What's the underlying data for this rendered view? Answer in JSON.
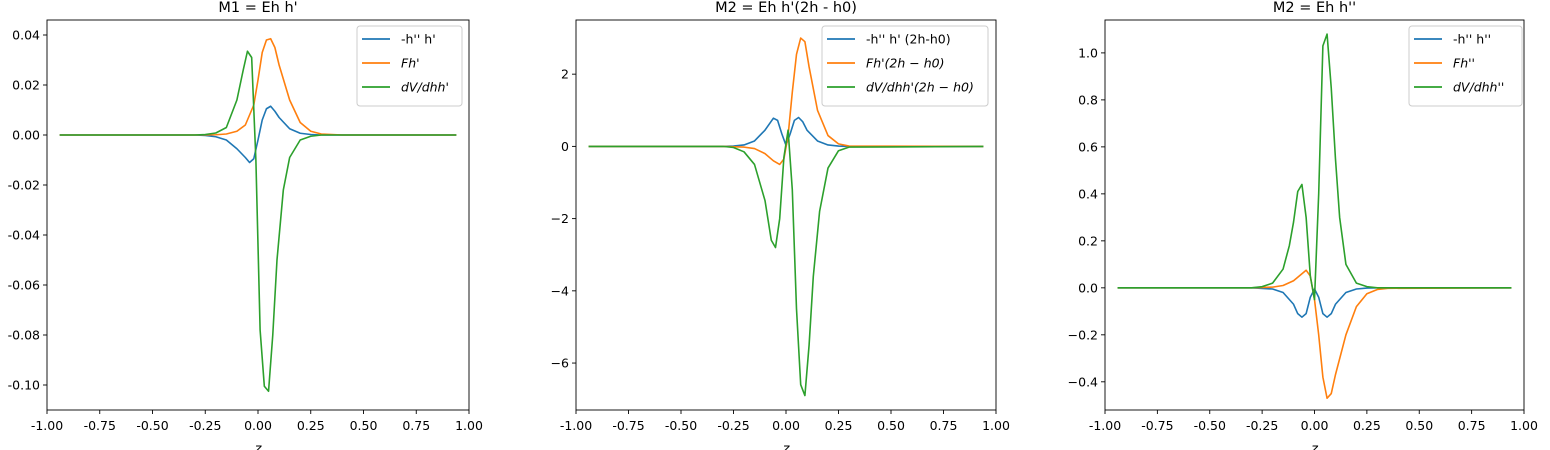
{
  "chart_data": [
    {
      "type": "line",
      "title": "M1 = Eh h'",
      "xlabel": "z",
      "ylabel": "",
      "xlim": [
        -1.0,
        1.0
      ],
      "ylim": [
        -0.11,
        0.046
      ],
      "xticks": [
        -1.0,
        -0.75,
        -0.5,
        -0.25,
        0.0,
        0.25,
        0.5,
        0.75,
        1.0
      ],
      "xtick_labels": [
        "-1.00",
        "-0.75",
        "-0.50",
        "-0.25",
        "0.00",
        "0.25",
        "0.50",
        "0.75",
        "1.00"
      ],
      "yticks": [
        0.04,
        0.02,
        0.0,
        -0.02,
        -0.04,
        -0.06,
        -0.08,
        -0.1
      ],
      "ytick_labels": [
        "0.04",
        "0.02",
        "0.00",
        "-0.02",
        "-0.04",
        "-0.06",
        "-0.08",
        "-0.10"
      ],
      "grid": false,
      "legend_position": "top-right",
      "series": [
        {
          "name": "-h'' h'",
          "color": "#1f77b4",
          "x": [
            -0.94,
            -0.3,
            -0.25,
            -0.2,
            -0.15,
            -0.1,
            -0.06,
            -0.04,
            -0.02,
            0.0,
            0.02,
            0.04,
            0.06,
            0.08,
            0.1,
            0.15,
            0.2,
            0.25,
            0.3,
            0.94
          ],
          "y": [
            0,
            0,
            -0.0002,
            -0.0007,
            -0.002,
            -0.0055,
            -0.009,
            -0.011,
            -0.0095,
            -0.002,
            0.006,
            0.0105,
            0.0115,
            0.0095,
            0.007,
            0.0025,
            0.0007,
            0.0002,
            0,
            0
          ]
        },
        {
          "name": "Fh'",
          "color": "#ff7f0e",
          "x": [
            -0.94,
            -0.3,
            -0.2,
            -0.15,
            -0.1,
            -0.06,
            -0.02,
            0.0,
            0.02,
            0.04,
            0.06,
            0.08,
            0.1,
            0.15,
            0.2,
            0.25,
            0.3,
            0.4,
            0.94
          ],
          "y": [
            0,
            0,
            0.0001,
            0.0004,
            0.0015,
            0.004,
            0.012,
            0.022,
            0.033,
            0.038,
            0.0385,
            0.035,
            0.028,
            0.014,
            0.005,
            0.0015,
            0.0004,
            0,
            0
          ]
        },
        {
          "name": "dV/dhh'",
          "color": "#2ca02c",
          "x": [
            -0.94,
            -0.3,
            -0.25,
            -0.2,
            -0.15,
            -0.1,
            -0.07,
            -0.05,
            -0.03,
            -0.01,
            0.01,
            0.03,
            0.05,
            0.07,
            0.09,
            0.12,
            0.15,
            0.2,
            0.25,
            0.3,
            0.94
          ],
          "y": [
            0,
            0,
            0.0002,
            0.0008,
            0.003,
            0.014,
            0.026,
            0.0335,
            0.031,
            -0.01,
            -0.078,
            -0.1005,
            -0.1025,
            -0.08,
            -0.05,
            -0.022,
            -0.009,
            -0.002,
            -0.0005,
            0,
            0
          ]
        }
      ]
    },
    {
      "type": "line",
      "title": "M2 = Eh h'(2h - h0)",
      "xlabel": "z",
      "ylabel": "",
      "xlim": [
        -1.0,
        1.0
      ],
      "ylim": [
        -7.3,
        3.5
      ],
      "xticks": [
        -1.0,
        -0.75,
        -0.5,
        -0.25,
        0.0,
        0.25,
        0.5,
        0.75,
        1.0
      ],
      "xtick_labels": [
        "-1.00",
        "-0.75",
        "-0.50",
        "-0.25",
        "0.00",
        "0.25",
        "0.50",
        "0.75",
        "1.00"
      ],
      "yticks": [
        2,
        0,
        -2,
        -4,
        -6
      ],
      "ytick_labels": [
        "2",
        "0",
        "−2",
        "−4",
        "−6"
      ],
      "grid": false,
      "legend_position": "top-right",
      "series": [
        {
          "name": "-h'' h' (2h-h0)",
          "color": "#1f77b4",
          "x": [
            -0.94,
            -0.3,
            -0.25,
            -0.2,
            -0.15,
            -0.1,
            -0.06,
            -0.04,
            -0.02,
            0.0,
            0.02,
            0.04,
            0.06,
            0.08,
            0.1,
            0.15,
            0.2,
            0.25,
            0.3,
            0.94
          ],
          "y": [
            0,
            0,
            0.01,
            0.04,
            0.15,
            0.45,
            0.78,
            0.72,
            0.35,
            0.03,
            0.35,
            0.72,
            0.8,
            0.68,
            0.45,
            0.15,
            0.04,
            0.01,
            0,
            0
          ]
        },
        {
          "name": "Fh'(2h − h0)",
          "color": "#ff7f0e",
          "x": [
            -0.94,
            -0.3,
            -0.2,
            -0.15,
            -0.1,
            -0.06,
            -0.03,
            -0.01,
            0.01,
            0.03,
            0.05,
            0.07,
            0.09,
            0.11,
            0.15,
            0.2,
            0.25,
            0.3,
            0.94
          ],
          "y": [
            0,
            0,
            -0.02,
            -0.06,
            -0.2,
            -0.4,
            -0.5,
            -0.35,
            0.3,
            1.5,
            2.55,
            3.0,
            2.9,
            2.2,
            1.0,
            0.3,
            0.07,
            0.01,
            0
          ]
        },
        {
          "name": "dV/dhh'(2h − h0)",
          "color": "#2ca02c",
          "x": [
            -0.94,
            -0.3,
            -0.25,
            -0.2,
            -0.15,
            -0.1,
            -0.07,
            -0.05,
            -0.03,
            -0.01,
            0.01,
            0.03,
            0.05,
            0.07,
            0.09,
            0.11,
            0.13,
            0.16,
            0.2,
            0.25,
            0.3,
            0.94
          ],
          "y": [
            0,
            0,
            -0.03,
            -0.15,
            -0.5,
            -1.5,
            -2.6,
            -2.8,
            -2.0,
            -0.3,
            0.45,
            -1.2,
            -4.5,
            -6.6,
            -6.9,
            -5.5,
            -3.6,
            -1.8,
            -0.6,
            -0.12,
            -0.02,
            0
          ]
        }
      ]
    },
    {
      "type": "line",
      "title": "M2 = Eh h''",
      "xlabel": "z",
      "ylabel": "",
      "xlim": [
        -1.0,
        1.0
      ],
      "ylim": [
        -0.52,
        1.14
      ],
      "xticks": [
        -1.0,
        -0.75,
        -0.5,
        -0.25,
        0.0,
        0.25,
        0.5,
        0.75,
        1.0
      ],
      "xtick_labels": [
        "-1.00",
        "-0.75",
        "-0.50",
        "-0.25",
        "0.00",
        "0.25",
        "0.50",
        "0.75",
        "1.00"
      ],
      "yticks": [
        1.0,
        0.8,
        0.6,
        0.4,
        0.2,
        0.0,
        -0.2,
        -0.4
      ],
      "ytick_labels": [
        "1.0",
        "0.8",
        "0.6",
        "0.4",
        "0.2",
        "0.0",
        "−0.2",
        "−0.4"
      ],
      "grid": false,
      "legend_position": "top-right",
      "series": [
        {
          "name": "-h'' h''",
          "color": "#1f77b4",
          "x": [
            -0.94,
            -0.3,
            -0.2,
            -0.15,
            -0.1,
            -0.08,
            -0.06,
            -0.04,
            -0.02,
            0.0,
            0.02,
            0.04,
            0.06,
            0.08,
            0.1,
            0.15,
            0.2,
            0.25,
            0.3,
            0.94
          ],
          "y": [
            0,
            0,
            -0.005,
            -0.02,
            -0.07,
            -0.11,
            -0.125,
            -0.11,
            -0.04,
            -0.005,
            -0.04,
            -0.11,
            -0.125,
            -0.11,
            -0.07,
            -0.02,
            -0.005,
            -0.001,
            0,
            0
          ]
        },
        {
          "name": "Fh''",
          "color": "#ff7f0e",
          "x": [
            -0.94,
            -0.3,
            -0.2,
            -0.15,
            -0.1,
            -0.06,
            -0.04,
            -0.02,
            0.0,
            0.02,
            0.04,
            0.06,
            0.08,
            0.1,
            0.15,
            0.2,
            0.25,
            0.3,
            0.35,
            0.94
          ],
          "y": [
            0,
            0,
            0.003,
            0.01,
            0.03,
            0.06,
            0.075,
            0.05,
            -0.05,
            -0.2,
            -0.38,
            -0.47,
            -0.45,
            -0.37,
            -0.2,
            -0.08,
            -0.025,
            -0.007,
            -0.002,
            0
          ]
        },
        {
          "name": "dV/dhh''",
          "color": "#2ca02c",
          "x": [
            -0.94,
            -0.3,
            -0.25,
            -0.2,
            -0.15,
            -0.12,
            -0.1,
            -0.08,
            -0.06,
            -0.04,
            -0.02,
            0.0,
            0.02,
            0.04,
            0.06,
            0.08,
            0.1,
            0.12,
            0.15,
            0.2,
            0.25,
            0.3,
            0.94
          ],
          "y": [
            0,
            0,
            0.005,
            0.02,
            0.08,
            0.18,
            0.28,
            0.41,
            0.44,
            0.3,
            0.05,
            -0.05,
            0.4,
            1.03,
            1.08,
            0.85,
            0.55,
            0.3,
            0.1,
            0.02,
            0.005,
            0,
            0
          ]
        }
      ]
    }
  ]
}
